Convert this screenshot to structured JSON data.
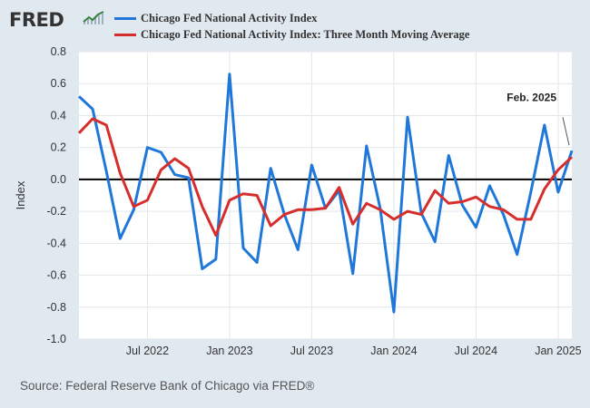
{
  "header": {
    "logo_text": "FRED",
    "logo_icon": "trend-line-icon"
  },
  "legend": [
    {
      "label": "Chicago Fed National Activity Index",
      "color": "#1f77d9"
    },
    {
      "label": "Chicago Fed National Activity Index: Three Month Moving Average",
      "color": "#d62d2d"
    }
  ],
  "source": "Source: Federal Reserve Bank of Chicago via FRED®",
  "chart_data": {
    "type": "line",
    "ylabel": "Index",
    "ylim": [
      -1.0,
      0.8
    ],
    "yticks": [
      {
        "v": 0.8,
        "label": "0.8"
      },
      {
        "v": 0.6,
        "label": "0.6"
      },
      {
        "v": 0.4,
        "label": "0.4"
      },
      {
        "v": 0.2,
        "label": "0.2"
      },
      {
        "v": 0.0,
        "label": "0.0"
      },
      {
        "v": -0.2,
        "label": "-0.2"
      },
      {
        "v": -0.4,
        "label": "-0.4"
      },
      {
        "v": -0.6,
        "label": "-0.6"
      },
      {
        "v": -0.8,
        "label": "-0.8"
      },
      {
        "v": -1.0,
        "label": "-1.0"
      }
    ],
    "xticks": [
      {
        "x": "2022-07",
        "label": "Jul 2022"
      },
      {
        "x": "2023-01",
        "label": "Jan 2023"
      },
      {
        "x": "2023-07",
        "label": "Jul 2023"
      },
      {
        "x": "2024-01",
        "label": "Jan 2024"
      },
      {
        "x": "2024-07",
        "label": "Jul 2024"
      },
      {
        "x": "2025-01",
        "label": "Jan 2025"
      }
    ],
    "xrange": [
      "2022-02",
      "2025-02"
    ],
    "grid": true,
    "zero_line": true,
    "annotation": {
      "text": "Feb. 2025",
      "x": "2025-02"
    },
    "x": [
      "2022-02",
      "2022-03",
      "2022-04",
      "2022-05",
      "2022-06",
      "2022-07",
      "2022-08",
      "2022-09",
      "2022-10",
      "2022-11",
      "2022-12",
      "2023-01",
      "2023-02",
      "2023-03",
      "2023-04",
      "2023-05",
      "2023-06",
      "2023-07",
      "2023-08",
      "2023-09",
      "2023-10",
      "2023-11",
      "2023-12",
      "2024-01",
      "2024-02",
      "2024-03",
      "2024-04",
      "2024-05",
      "2024-06",
      "2024-07",
      "2024-08",
      "2024-09",
      "2024-10",
      "2024-11",
      "2024-12",
      "2025-01",
      "2025-02"
    ],
    "series": [
      {
        "name": "Chicago Fed National Activity Index",
        "values": [
          0.52,
          0.44,
          0.05,
          -0.37,
          -0.19,
          0.2,
          0.17,
          0.03,
          0.01,
          -0.56,
          -0.5,
          0.66,
          -0.43,
          -0.52,
          0.07,
          -0.22,
          -0.44,
          0.09,
          -0.18,
          -0.07,
          -0.59,
          0.21,
          -0.18,
          -0.83,
          0.39,
          -0.21,
          -0.39,
          0.15,
          -0.16,
          -0.3,
          -0.04,
          -0.22,
          -0.47,
          -0.08,
          0.34,
          -0.08,
          0.18
        ]
      },
      {
        "name": "Chicago Fed National Activity Index: Three Month Moving Average",
        "values": [
          0.29,
          0.38,
          0.34,
          0.04,
          -0.17,
          -0.13,
          0.06,
          0.13,
          0.07,
          -0.17,
          -0.35,
          -0.13,
          -0.09,
          -0.1,
          -0.29,
          -0.22,
          -0.19,
          -0.19,
          -0.18,
          -0.05,
          -0.28,
          -0.15,
          -0.19,
          -0.25,
          -0.2,
          -0.22,
          -0.07,
          -0.15,
          -0.14,
          -0.11,
          -0.17,
          -0.19,
          -0.25,
          -0.25,
          -0.06,
          0.06,
          0.14
        ]
      }
    ]
  }
}
